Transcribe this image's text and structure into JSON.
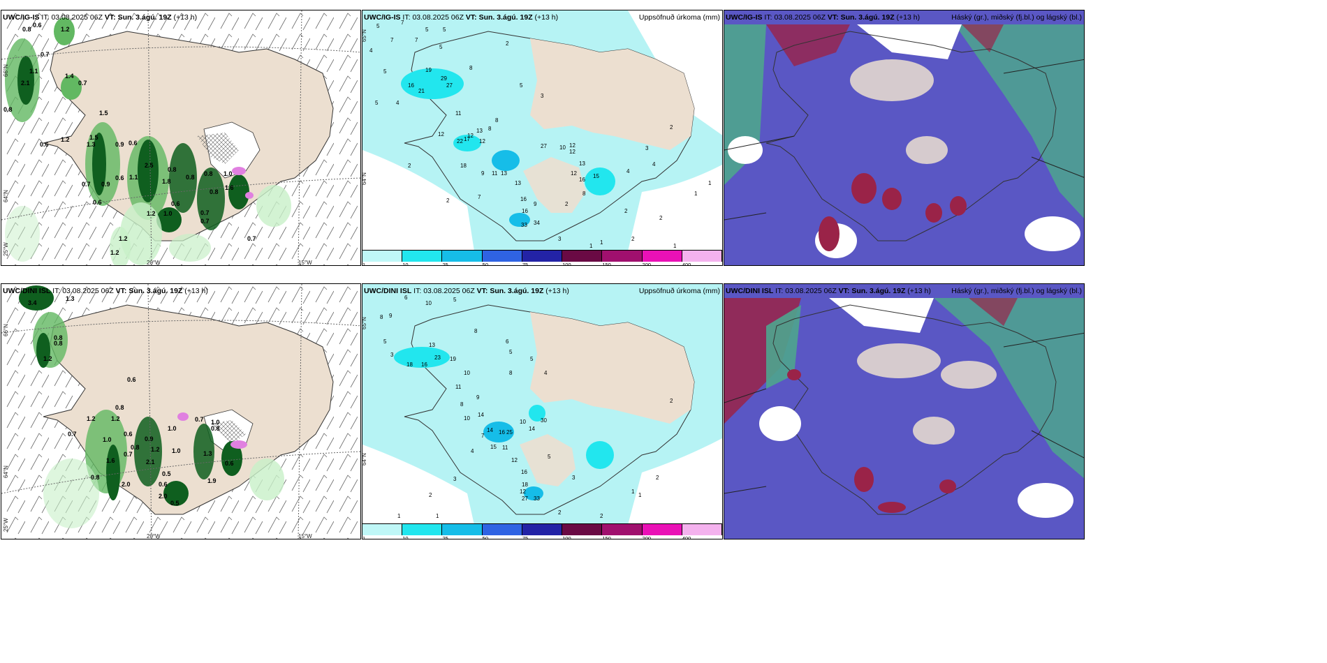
{
  "colors": {
    "land": "#ecdfd0",
    "sea": "#ffffff",
    "precip_sea": "#b6f3f4",
    "green_light": "#c8f0c8",
    "green_mid": "#62b862",
    "green_dark": "#0f5f1f",
    "cloud_low": "#5a57c4",
    "cloud_mid": "#4ea58e",
    "cloud_high": "#9a2348",
    "cbar": [
      "#bff7f7",
      "#22e6ee",
      "#16bde8",
      "#2f63e3",
      "#2323a6",
      "#6a0a44",
      "#a0106e",
      "#ea11b6",
      "#f4b2ee"
    ]
  },
  "rows": [
    {
      "model": "UWC/IG-IS",
      "it_label": "IT:",
      "it": "03.08.2025 06Z",
      "vt_label": "VT:",
      "vt": "Sun. 3.ágú. 19Z",
      "lead": "(+13 h)"
    },
    {
      "model": "UWC/DINI ISL",
      "it_label": "IT:",
      "it": "03.08.2025 06Z",
      "vt_label": "VT:",
      "vt": "Sun. 3.ágú. 19Z",
      "lead": "(+13 h)"
    }
  ],
  "panel_titles": {
    "precip": "Uppsöfnuð úrkoma (mm)",
    "cloud": "Háský (gr.), miðský (fj.bl.) og lágský (bl.)"
  },
  "axes": {
    "lat_66": "66°N",
    "lat_64": "64°N",
    "lat_65": "65°N",
    "lon_25": "25°W",
    "lon_20": "20°W",
    "lon_15": "15°W"
  },
  "colorbar": {
    "ticks": [
      "1",
      "10",
      "25",
      "50",
      "75",
      "100",
      "150",
      "200",
      "400"
    ]
  },
  "panel1_top_values": [
    "0.8",
    "0.6",
    "1.2",
    "0.7",
    "1.4",
    "0.7",
    "2.1",
    "1.1",
    "0.8",
    "1.5",
    "0.6",
    "1.2",
    "1.3",
    "0.9",
    "0.6",
    "1.5",
    "0.6",
    "0.7",
    "0.9",
    "1.8",
    "1.1",
    "0.8",
    "2.5",
    "0.8",
    "1.0",
    "0.8",
    "1.6",
    "0.8",
    "0.6",
    "0.7",
    "1.2",
    "1.0",
    "0.7",
    "0.6",
    "1.2",
    "1.2",
    "0.7"
  ],
  "panel1_bottom_values": [
    "3.4",
    "1.3",
    "0.8",
    "0.8",
    "1.2",
    "0.6",
    "0.7",
    "0.8",
    "1.2",
    "1.2",
    "1.0",
    "0.8",
    "0.6",
    "0.7",
    "1.0",
    "1.6",
    "0.9",
    "0.8",
    "1.2",
    "1.0",
    "0.7",
    "1.0",
    "0.5",
    "2.1",
    "1.9",
    "0.8",
    "1.3",
    "0.6",
    "2.0",
    "0.6",
    "0.5",
    "2.0"
  ],
  "panel2_top_values": [
    "5",
    "7",
    "5",
    "4",
    "5",
    "7",
    "7",
    "5",
    "5",
    "16",
    "19",
    "21",
    "29",
    "27",
    "8",
    "5",
    "4",
    "11",
    "12",
    "22",
    "17",
    "13",
    "12",
    "12",
    "8",
    "18",
    "9",
    "11",
    "13",
    "13",
    "16",
    "16",
    "9",
    "34",
    "33",
    "2",
    "2",
    "1",
    "3",
    "2",
    "27",
    "10",
    "12",
    "12",
    "13",
    "15",
    "16",
    "12",
    "8",
    "4",
    "3",
    "4",
    "2",
    "1",
    "1",
    "2",
    "2",
    "2",
    "1",
    "1",
    "2",
    "3",
    "5",
    "7",
    "8"
  ],
  "panel2_bottom_values": [
    "6",
    "10",
    "5",
    "8",
    "9",
    "5",
    "3",
    "18",
    "16",
    "23",
    "19",
    "13",
    "11",
    "9",
    "8",
    "10",
    "14",
    "14",
    "16",
    "15",
    "25",
    "10",
    "30",
    "11",
    "12",
    "14",
    "16",
    "18",
    "12",
    "27",
    "33",
    "8",
    "10",
    "8",
    "7",
    "5",
    "3",
    "2",
    "2",
    "1",
    "1",
    "1",
    "2",
    "3",
    "4",
    "6",
    "5",
    "5",
    "4",
    "2",
    "1",
    "2"
  ]
}
